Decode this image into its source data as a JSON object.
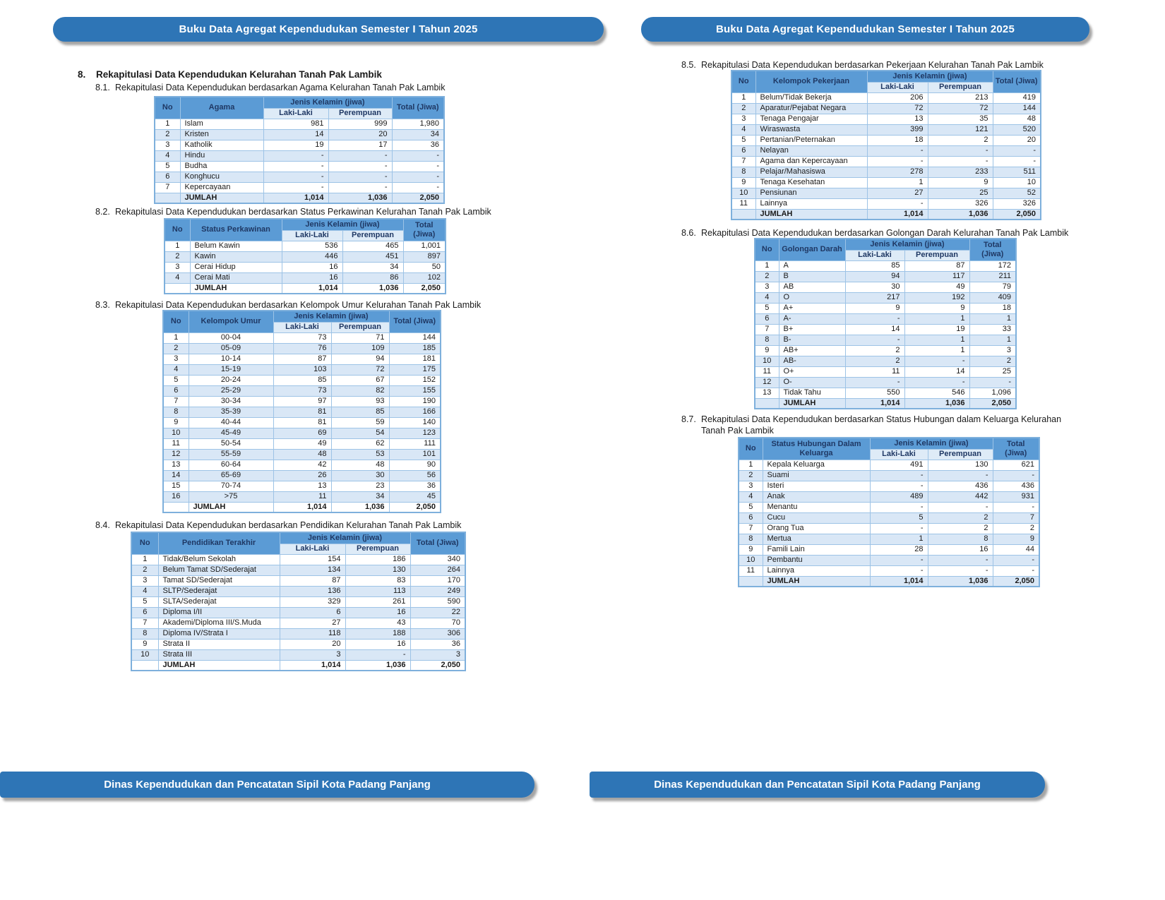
{
  "header_banner": "Buku Data Agregat Kependudukan Semester I Tahun 2025",
  "footer_banner": "Dinas Kependudukan dan Pencatatan Sipil Kota Padang Panjang",
  "section": {
    "number": "8.",
    "title": "Rekapitulasi Data Kependudukan Kelurahan Tanah Pak Lambik"
  },
  "table_headers": {
    "no": "No",
    "jenis_kelamin": "Jenis Kelamin (jiwa)",
    "laki_laki": "Laki-Laki",
    "perempuan": "Perempuan",
    "total": "Total (Jiwa)",
    "jumlah": "JUMLAH"
  },
  "colors": {
    "banner_blue": "#2E75B6",
    "table_header_blue": "#5B9BD5",
    "subheader_blue": "#DEEBF7",
    "row_alt_blue": "#D9E7F6",
    "header_text_navy": "#1F3864",
    "border_blue": "#9DC3E6"
  },
  "tables": [
    {
      "number": "8.1.",
      "title": "Rekapitulasi Data Kependudukan berdasarkan Agama Kelurahan Tanah Pak Lambik",
      "category_header": "Agama",
      "category_align": "left",
      "rows": [
        [
          "1",
          "Islam",
          "981",
          "999",
          "1,980"
        ],
        [
          "2",
          "Kristen",
          "14",
          "20",
          "34"
        ],
        [
          "3",
          "Katholik",
          "19",
          "17",
          "36"
        ],
        [
          "4",
          "Hindu",
          "-",
          "-",
          "-"
        ],
        [
          "5",
          "Budha",
          "-",
          "-",
          "-"
        ],
        [
          "6",
          "Konghucu",
          "-",
          "-",
          "-"
        ],
        [
          "7",
          "Kepercayaan",
          "-",
          "-",
          "-"
        ]
      ],
      "jumlah": [
        "1,014",
        "1,036",
        "2,050"
      ]
    },
    {
      "number": "8.2.",
      "title": "Rekapitulasi Data Kependudukan berdasarkan Status Perkawinan Kelurahan Tanah Pak Lambik",
      "category_header": "Status Perkawinan",
      "category_align": "left",
      "rows": [
        [
          "1",
          "Belum Kawin",
          "536",
          "465",
          "1,001"
        ],
        [
          "2",
          "Kawin",
          "446",
          "451",
          "897"
        ],
        [
          "3",
          "Cerai Hidup",
          "16",
          "34",
          "50"
        ],
        [
          "4",
          "Cerai Mati",
          "16",
          "86",
          "102"
        ]
      ],
      "jumlah": [
        "1,014",
        "1,036",
        "2,050"
      ]
    },
    {
      "number": "8.3.",
      "title": "Rekapitulasi Data Kependudukan berdasarkan Kelompok Umur Kelurahan Tanah Pak Lambik",
      "category_header": "Kelompok Umur",
      "category_align": "center",
      "rows": [
        [
          "1",
          "00-04",
          "73",
          "71",
          "144"
        ],
        [
          "2",
          "05-09",
          "76",
          "109",
          "185"
        ],
        [
          "3",
          "10-14",
          "87",
          "94",
          "181"
        ],
        [
          "4",
          "15-19",
          "103",
          "72",
          "175"
        ],
        [
          "5",
          "20-24",
          "85",
          "67",
          "152"
        ],
        [
          "6",
          "25-29",
          "73",
          "82",
          "155"
        ],
        [
          "7",
          "30-34",
          "97",
          "93",
          "190"
        ],
        [
          "8",
          "35-39",
          "81",
          "85",
          "166"
        ],
        [
          "9",
          "40-44",
          "81",
          "59",
          "140"
        ],
        [
          "10",
          "45-49",
          "69",
          "54",
          "123"
        ],
        [
          "11",
          "50-54",
          "49",
          "62",
          "111"
        ],
        [
          "12",
          "55-59",
          "48",
          "53",
          "101"
        ],
        [
          "13",
          "60-64",
          "42",
          "48",
          "90"
        ],
        [
          "14",
          "65-69",
          "26",
          "30",
          "56"
        ],
        [
          "15",
          "70-74",
          "13",
          "23",
          "36"
        ],
        [
          "16",
          ">75",
          "11",
          "34",
          "45"
        ]
      ],
      "jumlah": [
        "1,014",
        "1,036",
        "2,050"
      ]
    },
    {
      "number": "8.4.",
      "title": "Rekapitulasi Data Kependudukan berdasarkan Pendidikan Kelurahan Tanah Pak Lambik",
      "category_header": "Pendidikan Terakhir",
      "category_align": "left",
      "rows": [
        [
          "1",
          "Tidak/Belum Sekolah",
          "154",
          "186",
          "340"
        ],
        [
          "2",
          "Belum Tamat SD/Sederajat",
          "134",
          "130",
          "264"
        ],
        [
          "3",
          "Tamat SD/Sederajat",
          "87",
          "83",
          "170"
        ],
        [
          "4",
          "SLTP/Sederajat",
          "136",
          "113",
          "249"
        ],
        [
          "5",
          "SLTA/Sederajat",
          "329",
          "261",
          "590"
        ],
        [
          "6",
          "Diploma I/II",
          "6",
          "16",
          "22"
        ],
        [
          "7",
          "Akademi/Diploma III/S.Muda",
          "27",
          "43",
          "70"
        ],
        [
          "8",
          "Diploma IV/Strata I",
          "118",
          "188",
          "306"
        ],
        [
          "9",
          "Strata II",
          "20",
          "16",
          "36"
        ],
        [
          "10",
          "Strata III",
          "3",
          "-",
          "3"
        ]
      ],
      "jumlah": [
        "1,014",
        "1,036",
        "2,050"
      ]
    },
    {
      "number": "8.5.",
      "title": "Rekapitulasi Data Kependudukan berdasarkan Pekerjaan Kelurahan Tanah Pak Lambik",
      "category_header": "Kelompok Pekerjaan",
      "category_align": "left",
      "rows": [
        [
          "1",
          "Belum/Tidak Bekerja",
          "206",
          "213",
          "419"
        ],
        [
          "2",
          "Aparatur/Pejabat Negara",
          "72",
          "72",
          "144"
        ],
        [
          "3",
          "Tenaga Pengajar",
          "13",
          "35",
          "48"
        ],
        [
          "4",
          "Wiraswasta",
          "399",
          "121",
          "520"
        ],
        [
          "5",
          "Pertanian/Peternakan",
          "18",
          "2",
          "20"
        ],
        [
          "6",
          "Nelayan",
          "-",
          "-",
          "-"
        ],
        [
          "7",
          "Agama dan Kepercayaan",
          "-",
          "-",
          "-"
        ],
        [
          "8",
          "Pelajar/Mahasiswa",
          "278",
          "233",
          "511"
        ],
        [
          "9",
          "Tenaga Kesehatan",
          "1",
          "9",
          "10"
        ],
        [
          "10",
          "Pensiunan",
          "27",
          "25",
          "52"
        ],
        [
          "11",
          "Lainnya",
          "-",
          "326",
          "326"
        ]
      ],
      "jumlah": [
        "1,014",
        "1,036",
        "2,050"
      ]
    },
    {
      "number": "8.6.",
      "title": "Rekapitulasi Data Kependudukan berdasarkan Golongan Darah Kelurahan Tanah Pak Lambik",
      "category_header": "Golongan Darah",
      "category_align": "left",
      "rows": [
        [
          "1",
          "A",
          "85",
          "87",
          "172"
        ],
        [
          "2",
          "B",
          "94",
          "117",
          "211"
        ],
        [
          "3",
          "AB",
          "30",
          "49",
          "79"
        ],
        [
          "4",
          "O",
          "217",
          "192",
          "409"
        ],
        [
          "5",
          "A+",
          "9",
          "9",
          "18"
        ],
        [
          "6",
          "A-",
          "-",
          "1",
          "1"
        ],
        [
          "7",
          "B+",
          "14",
          "19",
          "33"
        ],
        [
          "8",
          "B-",
          "-",
          "1",
          "1"
        ],
        [
          "9",
          "AB+",
          "2",
          "1",
          "3"
        ],
        [
          "10",
          "AB-",
          "2",
          "-",
          "2"
        ],
        [
          "11",
          "O+",
          "11",
          "14",
          "25"
        ],
        [
          "12",
          "O-",
          "-",
          "-",
          "-"
        ],
        [
          "13",
          "Tidak Tahu",
          "550",
          "546",
          "1,096"
        ]
      ],
      "jumlah": [
        "1,014",
        "1,036",
        "2,050"
      ]
    },
    {
      "number": "8.7.",
      "title": "Rekapitulasi Data Kependudukan berdasarkan Status Hubungan dalam Keluarga Kelurahan Tanah Pak Lambik",
      "category_header": "Status Hubungan Dalam Keluarga",
      "category_align": "left",
      "rows": [
        [
          "1",
          "Kepala Keluarga",
          "491",
          "130",
          "621"
        ],
        [
          "2",
          "Suami",
          "-",
          "-",
          "-"
        ],
        [
          "3",
          "Isteri",
          "-",
          "436",
          "436"
        ],
        [
          "4",
          "Anak",
          "489",
          "442",
          "931"
        ],
        [
          "5",
          "Menantu",
          "-",
          "-",
          "-"
        ],
        [
          "6",
          "Cucu",
          "5",
          "2",
          "7"
        ],
        [
          "7",
          "Orang Tua",
          "-",
          "2",
          "2"
        ],
        [
          "8",
          "Mertua",
          "1",
          "8",
          "9"
        ],
        [
          "9",
          "Famili Lain",
          "28",
          "16",
          "44"
        ],
        [
          "10",
          "Pembantu",
          "-",
          "-",
          "-"
        ],
        [
          "11",
          "Lainnya",
          "-",
          "-",
          "-"
        ]
      ],
      "jumlah": [
        "1,014",
        "1,036",
        "2,050"
      ]
    }
  ]
}
